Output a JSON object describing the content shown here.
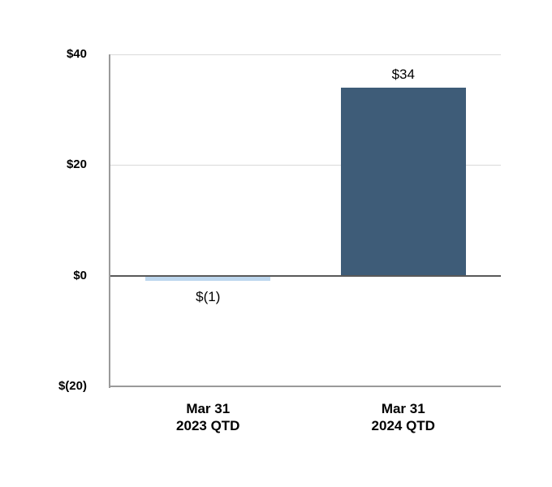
{
  "chart_data": {
    "type": "bar",
    "title": "",
    "categories": [
      [
        "Mar 31",
        "2023 QTD"
      ],
      [
        "Mar 31",
        "2024 QTD"
      ]
    ],
    "values": [
      -1,
      34
    ],
    "data_labels": [
      "$(1)",
      "$34"
    ],
    "bar_colors": [
      "#bdd7ee",
      "#3e5c78"
    ],
    "ylim": [
      -20,
      40
    ],
    "yticks": [
      {
        "value": 40,
        "label": "$40"
      },
      {
        "value": 20,
        "label": "$20"
      },
      {
        "value": 0,
        "label": "$0"
      },
      {
        "value": -20,
        "label": "$(20)"
      }
    ],
    "xlabel": "",
    "ylabel": "",
    "grid": true,
    "legend": false,
    "colors": {
      "gridline": "#d9d9d9",
      "zero_line": "#595959",
      "axis_line": "#9a9a9a",
      "text": "#000000"
    }
  }
}
